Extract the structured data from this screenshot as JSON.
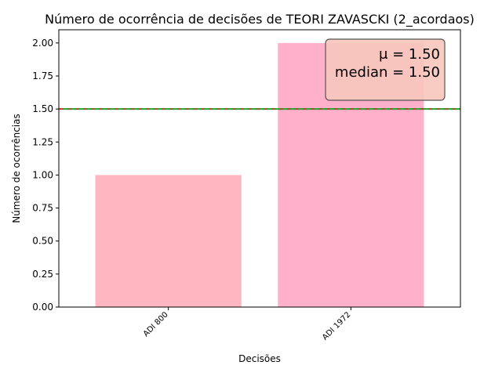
{
  "chart_data": {
    "type": "bar",
    "title": "Número de ocorrência de decisões de TEORI ZAVASCKI (2_acordaos)",
    "xlabel": "Decisões",
    "ylabel": "Número de ocorrências",
    "categories": [
      "ADI 800",
      "ADI 1972"
    ],
    "values": [
      1,
      2
    ],
    "bar_colors": [
      "#ffb6c1",
      "#ffb0cb"
    ],
    "ylim": [
      0,
      2.1
    ],
    "yticks": [
      0.0,
      0.25,
      0.5,
      0.75,
      1.0,
      1.25,
      1.5,
      1.75,
      2.0
    ],
    "ytick_labels": [
      "0.00",
      "0.25",
      "0.50",
      "0.75",
      "1.00",
      "1.25",
      "1.50",
      "1.75",
      "2.00"
    ],
    "mean": 1.5,
    "median": 1.5,
    "mean_line_color": "#d62728",
    "median_line_color": "#2ca02c",
    "stats_box": {
      "mean_text": "μ = 1.50",
      "median_text": "median = 1.50",
      "placement": "top-right",
      "background": "#f7c6bd"
    },
    "grid": false,
    "legend": "none"
  }
}
